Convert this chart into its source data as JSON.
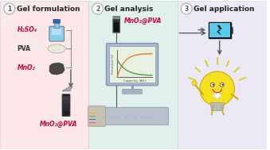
{
  "panel1_bg": "#fce8e8",
  "panel2_bg": "#e0f0ed",
  "panel3_bg": "#ede8f5",
  "panel1_title": "Gel formulation",
  "panel2_title": "Gel analysis",
  "panel3_title": "Gel application",
  "label_h2so4": "H₂SO₄",
  "label_pva": "PVA",
  "label_mno2": "MnO₂",
  "label_product": "MnO₂@PVA",
  "label_p2": "MnO₂@PVA",
  "xlabel": "Capacity (Ah)",
  "ylabel": "Potential (V)",
  "title_fontsize": 6.5,
  "label_fontsize": 5.5,
  "red_color": "#cc0044",
  "dark_color": "#222222",
  "arrow_color": "#555555",
  "line_orange": "#e08020",
  "line_green": "#559944",
  "bottle_blue": "#88ccee",
  "bottle_cap": "#3366aa",
  "tube_dark": "#1a1a2a",
  "bat_fill": "#55bbdd",
  "bulb_yellow": "#f5e020",
  "bulb_edge": "#ccaa00"
}
